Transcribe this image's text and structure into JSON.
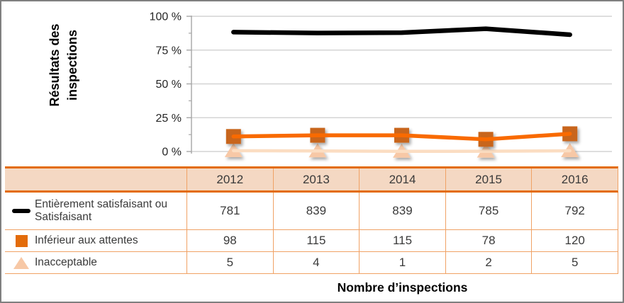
{
  "theme": {
    "accent_strong": "#E36C0A",
    "accent_light": "#F0A265",
    "header_bg": "#F4D8C3",
    "frame_gray": "#7F7F7F",
    "grid_gray": "#D4D4D4",
    "axis_gray": "#A6A6A6",
    "text_dark": "#3A3A3A",
    "peach_marker": "#F7C8A6"
  },
  "chart_data": {
    "type": "line",
    "title": "",
    "categories": [
      "2012",
      "2013",
      "2014",
      "2015",
      "2016"
    ],
    "series": [
      {
        "name": "Entièrement satisfaisant ou Satisfaisant",
        "legend_marker": "black-dash",
        "marker": "none",
        "line_color": "#000000",
        "marker_color": "#000000",
        "counts": [
          781,
          839,
          839,
          785,
          792
        ],
        "percent_values": [
          88.3,
          87.6,
          87.9,
          90.8,
          86.4
        ]
      },
      {
        "name": "Inférieur aux attentes",
        "legend_marker": "orange-square",
        "marker": "square",
        "line_color": "#F96A00",
        "marker_color": "#C8651B",
        "counts": [
          98,
          115,
          115,
          78,
          120
        ],
        "percent_values": [
          11.1,
          12.0,
          12.0,
          9.0,
          13.1
        ]
      },
      {
        "name": "Inacceptable",
        "legend_marker": "peach-triangle",
        "marker": "triangle",
        "line_color": "#FBDDC2",
        "marker_color": "#F7C8A6",
        "counts": [
          5,
          4,
          1,
          2,
          5
        ],
        "percent_values": [
          0.6,
          0.4,
          0.1,
          0.2,
          0.5
        ]
      }
    ],
    "ylabel": "Résultats des inspections",
    "xlabel": "Nombre d’inspections",
    "ylim": [
      0,
      100
    ],
    "ytick_pcts": [
      100,
      75,
      50,
      25,
      0
    ],
    "ytick_labels": [
      "100 %",
      "75 %",
      "50 %",
      "25 %",
      "0 %"
    ],
    "minor_tick_step_pct": 12.5,
    "grid": "horizontal major gridlines every 25 %",
    "legend_position": "table left column"
  }
}
